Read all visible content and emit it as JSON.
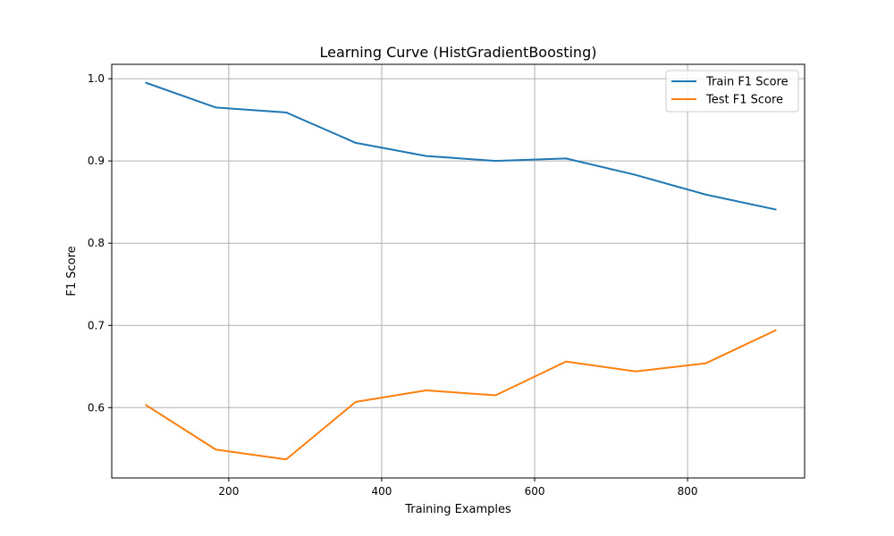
{
  "chart_data": {
    "type": "line",
    "title": "Learning Curve (HistGradientBoosting)",
    "xlabel": "Training Examples",
    "ylabel": "F1 Score",
    "xlim": [
      47,
      953
    ],
    "ylim": [
      0.5145,
      1.0175
    ],
    "xticks": [
      200,
      400,
      600,
      800
    ],
    "yticks": [
      0.6,
      0.7,
      0.8,
      0.9,
      1.0
    ],
    "grid": true,
    "legend_position": "upper right",
    "x": [
      92,
      183,
      275,
      366,
      458,
      549,
      641,
      732,
      824,
      915
    ],
    "series": [
      {
        "name": "Train F1 Score",
        "color": "#1f77b4",
        "values": [
          0.995,
          0.965,
          0.959,
          0.922,
          0.906,
          0.9,
          0.903,
          0.883,
          0.859,
          0.841
        ]
      },
      {
        "name": "Test F1 Score",
        "color": "#ff7f0e",
        "values": [
          0.603,
          0.549,
          0.537,
          0.607,
          0.621,
          0.615,
          0.656,
          0.644,
          0.654,
          0.694
        ]
      }
    ]
  }
}
